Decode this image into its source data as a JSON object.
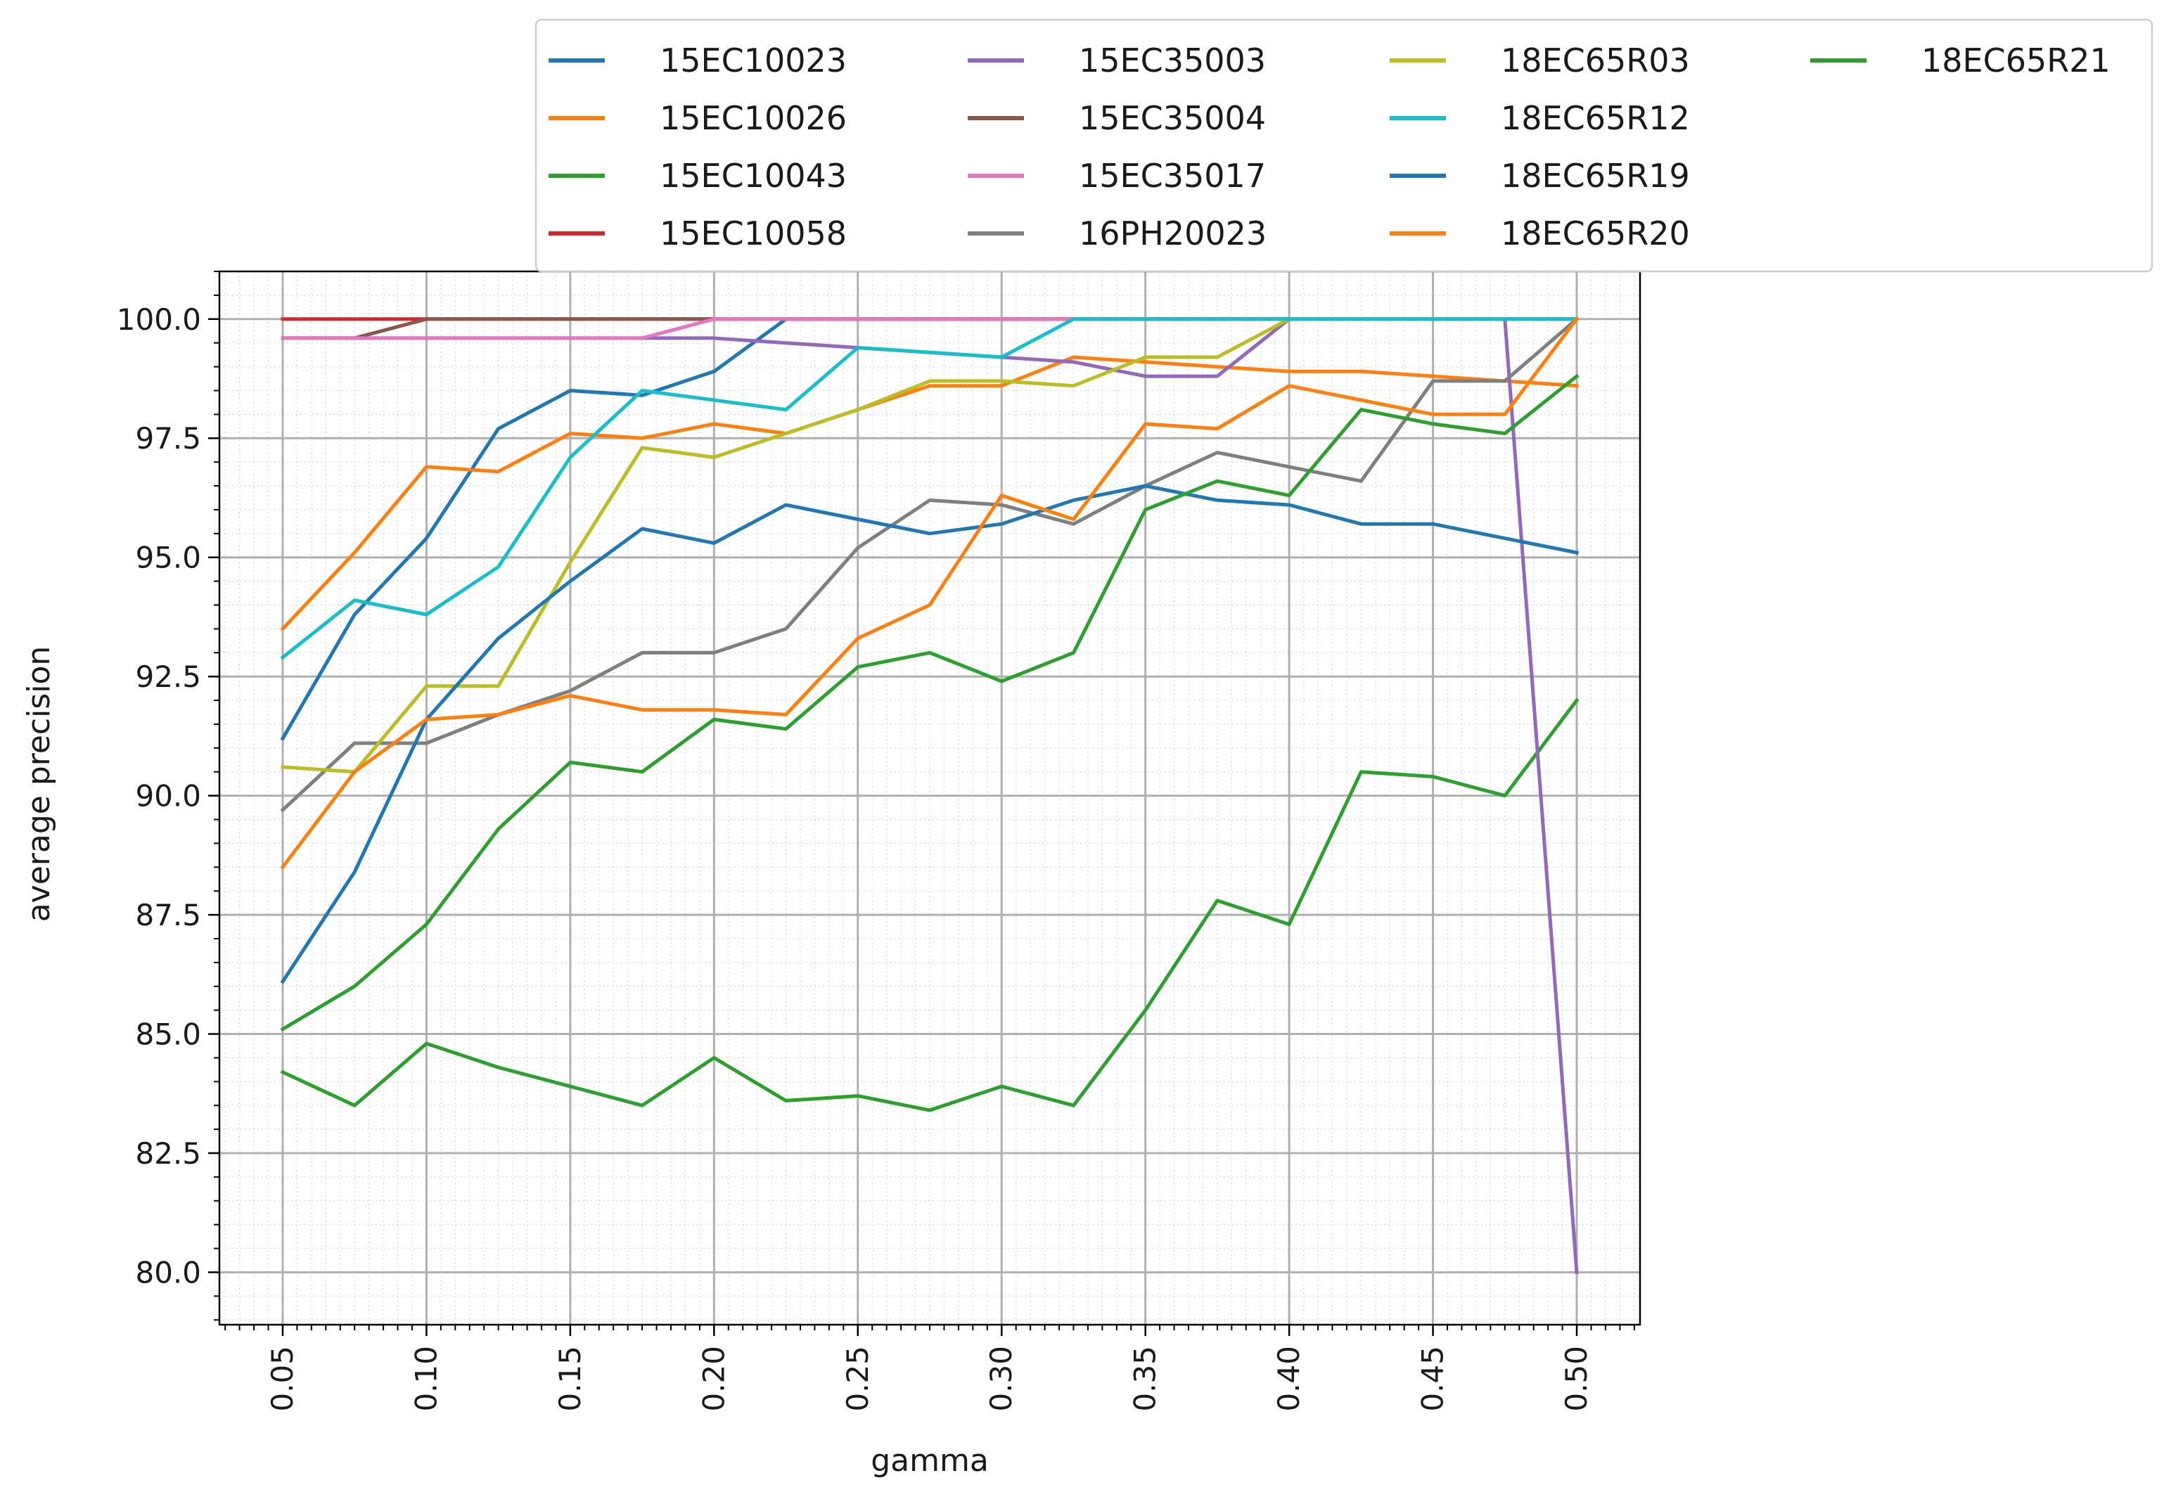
{
  "chart_data": {
    "type": "line",
    "title": "",
    "xlabel": "gamma",
    "ylabel": "average precision",
    "xlim": [
      0.028,
      0.522
    ],
    "ylim": [
      78.9,
      101.0
    ],
    "x_ticks": [
      0.05,
      0.1,
      0.15,
      0.2,
      0.25,
      0.3,
      0.35,
      0.4,
      0.45,
      0.5
    ],
    "x_tick_labels": [
      "0.05",
      "0.10",
      "0.15",
      "0.20",
      "0.25",
      "0.30",
      "0.35",
      "0.40",
      "0.45",
      "0.50"
    ],
    "y_ticks": [
      80.0,
      82.5,
      85.0,
      87.5,
      90.0,
      92.5,
      95.0,
      97.5,
      100.0
    ],
    "y_tick_labels": [
      "80.0",
      "82.5",
      "85.0",
      "87.5",
      "90.0",
      "92.5",
      "95.0",
      "97.5",
      "100.0"
    ],
    "grid": true,
    "minor_grid": true,
    "legend_position": "top, above plot (4 columns)",
    "x": [
      0.05,
      0.075,
      0.1,
      0.125,
      0.15,
      0.175,
      0.2,
      0.225,
      0.25,
      0.275,
      0.3,
      0.325,
      0.35,
      0.375,
      0.4,
      0.425,
      0.45,
      0.475,
      0.5
    ],
    "series": [
      {
        "name": "15EC10023",
        "color": "#1f77b4",
        "values": [
          91.2,
          93.8,
          95.4,
          97.7,
          98.5,
          98.4,
          98.9,
          100.0,
          100.0,
          100.0,
          100.0,
          100.0,
          100.0,
          100.0,
          100.0,
          100.0,
          100.0,
          100.0,
          100.0
        ]
      },
      {
        "name": "15EC10026",
        "color": "#ff7f0e",
        "values": [
          93.5,
          95.1,
          96.9,
          96.8,
          97.6,
          97.5,
          97.8,
          97.6,
          98.1,
          98.6,
          98.6,
          99.2,
          99.1,
          99.0,
          98.9,
          98.9,
          98.8,
          98.7,
          98.6
        ]
      },
      {
        "name": "15EC10043",
        "color": "#2ca02c",
        "values": [
          84.2,
          83.5,
          84.8,
          84.3,
          83.9,
          83.5,
          84.5,
          83.6,
          83.7,
          83.4,
          83.9,
          83.5,
          85.5,
          87.8,
          87.3,
          90.5,
          90.4,
          90.0,
          92.0
        ]
      },
      {
        "name": "15EC10058",
        "color": "#d62728",
        "values": [
          100.0,
          100.0,
          100.0,
          100.0,
          100.0,
          100.0,
          100.0,
          100.0,
          100.0,
          100.0,
          100.0,
          100.0,
          100.0,
          100.0,
          100.0,
          100.0,
          100.0,
          100.0,
          100.0
        ]
      },
      {
        "name": "15EC35003",
        "color": "#9467bd",
        "values": [
          99.6,
          99.6,
          99.6,
          99.6,
          99.6,
          99.6,
          99.6,
          99.5,
          99.4,
          99.3,
          99.2,
          99.1,
          98.8,
          98.8,
          100.0,
          100.0,
          100.0,
          100.0,
          80.0
        ]
      },
      {
        "name": "15EC35004",
        "color": "#8c564b",
        "values": [
          99.6,
          99.6,
          100.0,
          100.0,
          100.0,
          100.0,
          100.0,
          100.0,
          100.0,
          100.0,
          100.0,
          100.0,
          100.0,
          100.0,
          100.0,
          100.0,
          100.0,
          100.0,
          100.0
        ]
      },
      {
        "name": "15EC35017",
        "color": "#e377c2",
        "values": [
          99.6,
          99.6,
          99.6,
          99.6,
          99.6,
          99.6,
          100.0,
          100.0,
          100.0,
          100.0,
          100.0,
          100.0,
          100.0,
          100.0,
          100.0,
          100.0,
          100.0,
          100.0,
          100.0
        ]
      },
      {
        "name": "16PH20023",
        "color": "#7f7f7f",
        "values": [
          89.7,
          91.1,
          91.1,
          91.7,
          92.2,
          93.0,
          93.0,
          93.5,
          95.2,
          96.2,
          96.1,
          95.7,
          96.5,
          97.2,
          96.9,
          96.6,
          98.7,
          98.7,
          100.0
        ]
      },
      {
        "name": "18EC65R03",
        "color": "#bcbd22",
        "values": [
          90.6,
          90.5,
          92.3,
          92.3,
          94.9,
          97.3,
          97.1,
          97.6,
          98.1,
          98.7,
          98.7,
          98.6,
          99.2,
          99.2,
          100.0,
          100.0,
          100.0,
          100.0,
          100.0
        ]
      },
      {
        "name": "18EC65R12",
        "color": "#17becf",
        "values": [
          92.9,
          94.1,
          93.8,
          94.8,
          97.1,
          98.5,
          98.3,
          98.1,
          99.4,
          99.3,
          99.2,
          100.0,
          100.0,
          100.0,
          100.0,
          100.0,
          100.0,
          100.0,
          100.0
        ]
      },
      {
        "name": "18EC65R19",
        "color": "#1f77b4",
        "values": [
          86.1,
          88.4,
          91.6,
          93.3,
          94.5,
          95.6,
          95.3,
          96.1,
          95.8,
          95.5,
          95.7,
          96.2,
          96.5,
          96.2,
          96.1,
          95.7,
          95.7,
          95.4,
          95.1
        ]
      },
      {
        "name": "18EC65R20",
        "color": "#ff7f0e",
        "values": [
          88.5,
          90.5,
          91.6,
          91.7,
          92.1,
          91.8,
          91.8,
          91.7,
          93.3,
          94.0,
          96.3,
          95.8,
          97.8,
          97.7,
          98.6,
          98.3,
          98.0,
          98.0,
          100.0
        ]
      },
      {
        "name": "18EC65R21",
        "color": "#2ca02c",
        "values": [
          85.1,
          86.0,
          87.3,
          89.3,
          90.7,
          90.5,
          91.6,
          91.4,
          92.7,
          93.0,
          92.4,
          93.0,
          96.0,
          96.6,
          96.3,
          98.1,
          97.8,
          97.6,
          98.8
        ]
      }
    ]
  }
}
